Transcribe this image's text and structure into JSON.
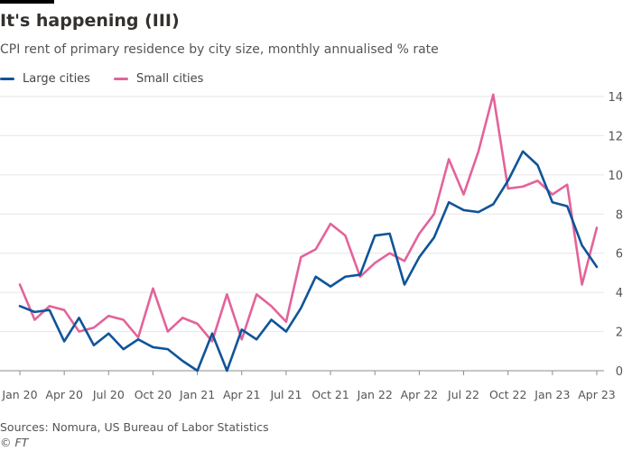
{
  "title": "It's happening (III)",
  "subtitle": "CPI rent of primary residence by city size, monthly annualised % rate",
  "source": "Sources: Nomura, US Bureau of Labor Statistics",
  "copyright": "© FT",
  "chart_data": {
    "type": "line",
    "x": [
      "2020-01",
      "2020-02",
      "2020-03",
      "2020-04",
      "2020-05",
      "2020-06",
      "2020-07",
      "2020-08",
      "2020-09",
      "2020-10",
      "2020-11",
      "2020-12",
      "2021-01",
      "2021-02",
      "2021-03",
      "2021-04",
      "2021-05",
      "2021-06",
      "2021-07",
      "2021-08",
      "2021-09",
      "2021-10",
      "2021-11",
      "2021-12",
      "2022-01",
      "2022-02",
      "2022-03",
      "2022-04",
      "2022-05",
      "2022-06",
      "2022-07",
      "2022-08",
      "2022-09",
      "2022-10",
      "2022-11",
      "2022-12",
      "2023-01",
      "2023-02",
      "2023-03",
      "2023-04"
    ],
    "xticks": [
      "Jan 20",
      "Apr 20",
      "Jul 20",
      "Oct 20",
      "Jan 21",
      "Apr 21",
      "Jul 21",
      "Oct 21",
      "Jan 22",
      "Apr 22",
      "Jul 22",
      "Oct 22",
      "Jan 23",
      "Apr 23"
    ],
    "ylim": [
      0,
      14
    ],
    "yticks": [
      0,
      2,
      4,
      6,
      8,
      10,
      12,
      14
    ],
    "y_axis_side": "right",
    "grid": true,
    "legend_position": "top-left",
    "series": [
      {
        "name": "Large cities",
        "color": "#0f5499",
        "values": [
          3.3,
          3.0,
          3.1,
          1.5,
          2.7,
          1.3,
          1.9,
          1.1,
          1.6,
          1.2,
          1.1,
          0.5,
          0.0,
          1.9,
          0.0,
          2.1,
          1.6,
          2.6,
          2.0,
          3.2,
          4.8,
          4.3,
          4.8,
          4.9,
          6.9,
          7.0,
          4.4,
          5.8,
          6.8,
          8.6,
          8.2,
          8.1,
          8.5,
          9.7,
          11.2,
          10.5,
          8.6,
          8.4,
          6.4,
          5.3
        ]
      },
      {
        "name": "Small cities",
        "color": "#e3639a",
        "values": [
          4.4,
          2.6,
          3.3,
          3.1,
          2.0,
          2.2,
          2.8,
          2.6,
          1.7,
          4.2,
          2.0,
          2.7,
          2.4,
          1.5,
          3.9,
          1.6,
          3.9,
          3.3,
          2.5,
          5.8,
          6.2,
          7.5,
          6.9,
          4.8,
          5.5,
          6.0,
          5.6,
          7.0,
          8.0,
          10.8,
          9.0,
          11.2,
          14.1,
          9.3,
          9.4,
          9.7,
          9.0,
          9.5,
          4.4,
          7.3
        ]
      }
    ]
  }
}
